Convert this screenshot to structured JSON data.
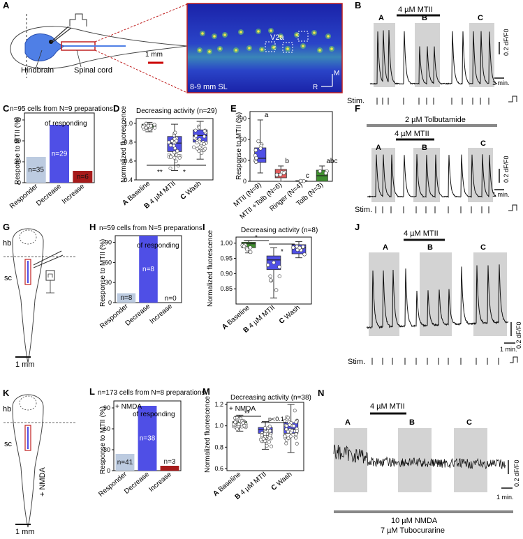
{
  "panels": {
    "A": {
      "letter": "A",
      "hindbrain": "Hindbrain",
      "spinal_cord": "Spinal cord",
      "scale": "1 mm",
      "image_label": "8-9 mm SL",
      "v2a": "V2a",
      "axis_m": "M",
      "axis_r": "R"
    },
    "B": {
      "letter": "B",
      "drug": "4 µM MTII",
      "wa": "A",
      "wb": "B",
      "wc": "C",
      "scale_y": "0.2 dF/F0",
      "scale_x": "1 min.",
      "stim": "Stim."
    },
    "C": {
      "letter": "C",
      "title": "n=95 cells from N=9 preparations",
      "ylabel": "Response to MTII (%)",
      "note": "of responding",
      "chart_data": {
        "type": "bar",
        "categories": [
          "Responder",
          "Decrease",
          "Increase"
        ],
        "values": [
          37,
          83,
          17
        ],
        "labels": [
          "n=35",
          "n=29",
          "n=6"
        ],
        "ylim": [
          0,
          100
        ],
        "colors": [
          "#bccbe0",
          "#4f4fe6",
          "#a61b1b"
        ]
      }
    },
    "D": {
      "letter": "D",
      "title": "Decreasing activity (n=29)",
      "ylabel": "Normalized fluorescence",
      "sig1": "**",
      "sig2": "*",
      "chart_data": {
        "type": "box",
        "categories": [
          "Baseline",
          "4 µM MTII",
          "Wash"
        ],
        "group_letters": [
          "A",
          "B",
          "C"
        ],
        "ylim": [
          0.4,
          1.05
        ],
        "yticks": [
          "0.4",
          "0.6",
          "0.8",
          "1.0"
        ],
        "boxes": [
          {
            "q1": 0.95,
            "median": 0.97,
            "q3": 0.99,
            "wl": 0.91,
            "wh": 1.01
          },
          {
            "q1": 0.7,
            "median": 0.79,
            "q3": 0.86,
            "wl": 0.5,
            "wh": 0.99
          },
          {
            "q1": 0.8,
            "median": 0.87,
            "q3": 0.93,
            "wl": 0.62,
            "wh": 1.02
          }
        ],
        "colors": [
          "#3f8f2f",
          "#4f4fe6",
          "#4f4fe6"
        ]
      }
    },
    "E": {
      "letter": "E",
      "ylabel": "Response to MTII (%)",
      "chart_data": {
        "type": "box",
        "categories": [
          "MTII (N=9)",
          "MTII +Tolb (N=6)",
          "Ringer (N=4)",
          "Tolb (N=3)"
        ],
        "letters": [
          "a",
          "b",
          "c",
          "abc"
        ],
        "ylim": [
          0,
          100
        ],
        "yticks": [
          "0",
          "30",
          "60",
          "90"
        ],
        "boxes": [
          {
            "q1": 27,
            "median": 33,
            "q3": 48,
            "wl": 12,
            "wh": 88
          },
          {
            "q1": 5,
            "median": 11,
            "q3": 17,
            "wl": 0,
            "wh": 22
          },
          {
            "q1": 0,
            "median": 0,
            "q3": 1,
            "wl": 0,
            "wh": 1
          },
          {
            "q1": 0,
            "median": 8,
            "q3": 16,
            "wl": 0,
            "wh": 22
          }
        ],
        "colors": [
          "#4f4fe6",
          "#e05a5a",
          "#3f8f2f",
          "#3f8f2f"
        ]
      }
    },
    "F": {
      "letter": "F",
      "drug2": "2 µM Tolbutamide",
      "drug": "4 µM MTII",
      "wa": "A",
      "wb": "B",
      "wc": "C",
      "scale_y": "0.2 dF/F0",
      "scale_x": "1 min.",
      "stim": "Stim."
    },
    "G": {
      "letter": "G",
      "hb": "hb",
      "sc": "sc",
      "scale": "1 mm"
    },
    "H": {
      "letter": "H",
      "title": "n=59 cells from N=5 preparations",
      "ylabel": "Response to MTII (%)",
      "note": "of responding",
      "chart_data": {
        "type": "bar",
        "categories": [
          "Responder",
          "Decrease",
          "Increase"
        ],
        "values": [
          14,
          100,
          0
        ],
        "labels": [
          "n=8",
          "n=8",
          "n=0"
        ],
        "ylim": [
          0,
          100
        ],
        "colors": [
          "#bccbe0",
          "#4f4fe6",
          "#a61b1b"
        ]
      }
    },
    "I": {
      "letter": "I",
      "title": "Decreasing activity (n=8)",
      "ylabel": "Normalized fluorescence",
      "sig1": "*",
      "sig2": "*",
      "chart_data": {
        "type": "box",
        "categories": [
          "Baseline",
          "4 µM MTII",
          "Wash"
        ],
        "group_letters": [
          "A",
          "B",
          "C"
        ],
        "ylim": [
          0.8,
          1.02
        ],
        "yticks": [
          "0.85",
          "0.90",
          "0.95",
          "1.00"
        ],
        "boxes": [
          {
            "q1": 0.985,
            "median": 0.998,
            "q3": 1.003,
            "wl": 0.968,
            "wh": 1.008
          },
          {
            "q1": 0.913,
            "median": 0.945,
            "q3": 0.958,
            "wl": 0.82,
            "wh": 0.985
          },
          {
            "q1": 0.965,
            "median": 0.985,
            "q3": 0.995,
            "wl": 0.952,
            "wh": 1.005
          }
        ],
        "colors": [
          "#3f8f2f",
          "#4f4fe6",
          "#4f4fe6"
        ]
      }
    },
    "J": {
      "letter": "J",
      "drug": "4 µM MTII",
      "wa": "A",
      "wb": "B",
      "wc": "C",
      "scale_y": "0.2 dF/F0",
      "scale_x": "1 min.",
      "stim": "Stim."
    },
    "K": {
      "letter": "K",
      "hb": "hb",
      "sc": "sc",
      "nmda": "+ NMDA",
      "scale": "1 mm"
    },
    "L": {
      "letter": "L",
      "title": "n=173 cells from N=8 preparations",
      "ylabel": "Response to MTII (%)",
      "note": "of responding",
      "nmda": "+ NMDA",
      "chart_data": {
        "type": "bar",
        "categories": [
          "Responder",
          "Decrease",
          "Increase"
        ],
        "values": [
          24,
          93,
          7
        ],
        "labels": [
          "n=41",
          "n=38",
          "n=3"
        ],
        "ylim": [
          0,
          100
        ],
        "colors": [
          "#bccbe0",
          "#4f4fe6",
          "#a61b1b"
        ]
      }
    },
    "M": {
      "letter": "M",
      "title": "Decreasing activity (n=38)",
      "ylabel": "Normalized fluorescence",
      "nmda": "+ NMDA",
      "sig1": "**",
      "sig2": "p<0.1",
      "chart_data": {
        "type": "box",
        "categories": [
          "Baseline",
          "4 µM MTII",
          "Wash"
        ],
        "group_letters": [
          "A",
          "B",
          "C"
        ],
        "ylim": [
          0.58,
          1.22
        ],
        "yticks": [
          "0.6",
          "0.8",
          "1.0",
          "1.2"
        ],
        "boxes": [
          {
            "q1": 0.985,
            "median": 1.01,
            "q3": 1.04,
            "wl": 0.95,
            "wh": 1.1
          },
          {
            "q1": 0.93,
            "median": 0.965,
            "q3": 0.985,
            "wl": 0.78,
            "wh": 1.04
          },
          {
            "q1": 0.93,
            "median": 0.97,
            "q3": 1.03,
            "wl": 0.75,
            "wh": 1.2
          }
        ],
        "colors": [
          "#3f8f2f",
          "#4f4fe6",
          "#4f4fe6"
        ]
      }
    },
    "N": {
      "letter": "N",
      "drug": "4 µM MTII",
      "wa": "A",
      "wb": "B",
      "wc": "C",
      "scale_y": "0.2 dF/F0",
      "scale_x": "1 min.",
      "drug_bottom1": "10 µM NMDA",
      "drug_bottom2": "7 µM Tubocurarine"
    }
  }
}
